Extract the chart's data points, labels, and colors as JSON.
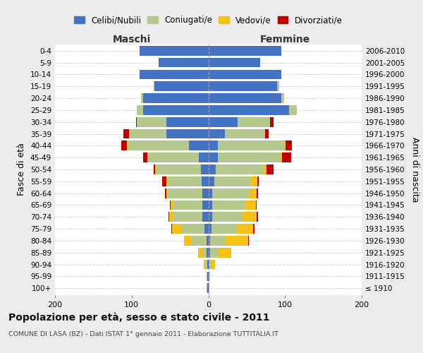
{
  "age_groups": [
    "100+",
    "95-99",
    "90-94",
    "85-89",
    "80-84",
    "75-79",
    "70-74",
    "65-69",
    "60-64",
    "55-59",
    "50-54",
    "45-49",
    "40-44",
    "35-39",
    "30-34",
    "25-29",
    "20-24",
    "15-19",
    "10-14",
    "5-9",
    "0-4"
  ],
  "birth_years": [
    "≤ 1910",
    "1911-1915",
    "1916-1920",
    "1921-1925",
    "1926-1930",
    "1931-1935",
    "1936-1940",
    "1941-1945",
    "1946-1950",
    "1951-1955",
    "1956-1960",
    "1961-1965",
    "1966-1970",
    "1971-1975",
    "1976-1980",
    "1981-1985",
    "1986-1990",
    "1991-1995",
    "1996-2000",
    "2001-2005",
    "2006-2010"
  ],
  "maschi_celibi": [
    1,
    1,
    1,
    2,
    2,
    5,
    8,
    8,
    8,
    9,
    10,
    12,
    25,
    55,
    55,
    85,
    85,
    70,
    90,
    65,
    90
  ],
  "maschi_coniugati": [
    1,
    1,
    3,
    6,
    20,
    30,
    38,
    38,
    45,
    45,
    58,
    68,
    80,
    48,
    38,
    8,
    3,
    1,
    0,
    0,
    0
  ],
  "maschi_vedovi": [
    0,
    0,
    2,
    5,
    10,
    12,
    5,
    3,
    2,
    1,
    1,
    0,
    1,
    0,
    0,
    0,
    0,
    0,
    0,
    0,
    0
  ],
  "maschi_divorziati": [
    0,
    0,
    0,
    0,
    0,
    1,
    1,
    1,
    2,
    5,
    2,
    5,
    8,
    8,
    1,
    0,
    0,
    0,
    0,
    0,
    0
  ],
  "femmine_nubili": [
    0,
    0,
    1,
    2,
    2,
    4,
    5,
    5,
    5,
    8,
    10,
    12,
    12,
    22,
    38,
    105,
    95,
    90,
    95,
    68,
    95
  ],
  "femmine_coniugate": [
    1,
    1,
    3,
    10,
    20,
    32,
    40,
    42,
    48,
    48,
    62,
    82,
    88,
    52,
    42,
    10,
    4,
    2,
    0,
    0,
    0
  ],
  "femmine_vedove": [
    0,
    1,
    5,
    18,
    30,
    22,
    18,
    15,
    10,
    8,
    4,
    2,
    1,
    0,
    0,
    0,
    0,
    0,
    0,
    0,
    0
  ],
  "femmine_divorziate": [
    0,
    0,
    0,
    0,
    1,
    2,
    2,
    1,
    2,
    2,
    9,
    12,
    8,
    5,
    5,
    0,
    0,
    0,
    0,
    0,
    0
  ],
  "color_celibi": "#4472C4",
  "color_coniugati": "#B5C98E",
  "color_vedovi": "#F5C018",
  "color_divorziati": "#C00000",
  "xlim": 200,
  "title": "Popolazione per età, sesso e stato civile - 2011",
  "subtitle": "COMUNE DI LASA (BZ) - Dati ISTAT 1° gennaio 2011 - Elaborazione TUTTITALIA.IT",
  "ylabel_left": "Fasce di età",
  "ylabel_right": "Anni di nascita",
  "header_maschi": "Maschi",
  "header_femmine": "Femmine",
  "legend_labels": [
    "Celibi/Nubili",
    "Coniugati/e",
    "Vedovi/e",
    "Divorziati/e"
  ],
  "bg_color": "#ececec",
  "plot_bg": "#ffffff",
  "grid_color": "#cccccc"
}
